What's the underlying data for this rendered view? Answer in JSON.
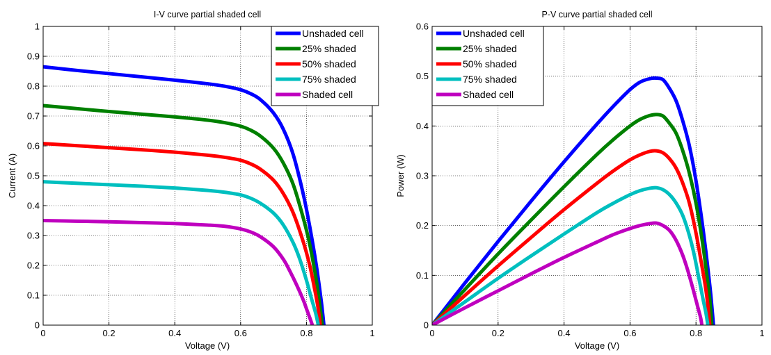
{
  "chart_data": [
    {
      "type": "line",
      "title": "I-V curve partial shaded cell",
      "xlabel": "Voltage (V)",
      "ylabel": "Current (A)",
      "xlim": [
        0,
        1
      ],
      "ylim": [
        0,
        1
      ],
      "xticks": [
        0,
        0.2,
        0.4,
        0.6,
        0.8,
        1
      ],
      "xtick_labels": [
        "0",
        "0.2",
        "0.4",
        "0.6",
        "0.8",
        "1"
      ],
      "yticks": [
        0,
        0.1,
        0.2,
        0.3,
        0.4,
        0.5,
        0.6,
        0.7,
        0.8,
        0.9,
        1
      ],
      "ytick_labels": [
        "0",
        "0.1",
        "0.2",
        "0.3",
        "0.4",
        "0.5",
        "0.6",
        "0.7",
        "0.8",
        "0.9",
        "1"
      ],
      "grid": true,
      "legend_position": "top-right",
      "series": [
        {
          "name": "Unshaded cell",
          "color": "#0000ff",
          "x": [
            0,
            0.1,
            0.2,
            0.3,
            0.4,
            0.5,
            0.55,
            0.6,
            0.63,
            0.66,
            0.7,
            0.73,
            0.76,
            0.79,
            0.81,
            0.83,
            0.845,
            0.853
          ],
          "y": [
            0.865,
            0.853,
            0.842,
            0.831,
            0.82,
            0.808,
            0.8,
            0.788,
            0.775,
            0.755,
            0.71,
            0.655,
            0.57,
            0.44,
            0.33,
            0.2,
            0.08,
            0
          ]
        },
        {
          "name": "25% shaded",
          "color": "#008000",
          "x": [
            0,
            0.1,
            0.2,
            0.3,
            0.4,
            0.5,
            0.55,
            0.6,
            0.63,
            0.66,
            0.7,
            0.73,
            0.76,
            0.79,
            0.81,
            0.83,
            0.84,
            0.848
          ],
          "y": [
            0.735,
            0.725,
            0.715,
            0.706,
            0.697,
            0.686,
            0.678,
            0.666,
            0.653,
            0.633,
            0.592,
            0.542,
            0.47,
            0.36,
            0.27,
            0.15,
            0.07,
            0
          ]
        },
        {
          "name": "50% shaded",
          "color": "#ff0000",
          "x": [
            0,
            0.1,
            0.2,
            0.3,
            0.4,
            0.5,
            0.55,
            0.6,
            0.63,
            0.66,
            0.7,
            0.73,
            0.76,
            0.79,
            0.81,
            0.825,
            0.835,
            0.842
          ],
          "y": [
            0.608,
            0.601,
            0.594,
            0.587,
            0.579,
            0.569,
            0.562,
            0.552,
            0.54,
            0.522,
            0.485,
            0.44,
            0.375,
            0.28,
            0.2,
            0.12,
            0.06,
            0
          ]
        },
        {
          "name": "75% shaded",
          "color": "#00bfbf",
          "x": [
            0,
            0.1,
            0.2,
            0.3,
            0.4,
            0.5,
            0.55,
            0.6,
            0.63,
            0.66,
            0.7,
            0.73,
            0.76,
            0.78,
            0.8,
            0.815,
            0.828,
            0.836
          ],
          "y": [
            0.48,
            0.475,
            0.47,
            0.465,
            0.459,
            0.451,
            0.445,
            0.436,
            0.425,
            0.408,
            0.375,
            0.335,
            0.275,
            0.22,
            0.15,
            0.09,
            0.04,
            0
          ]
        },
        {
          "name": "Shaded cell",
          "color": "#bf00bf",
          "x": [
            0,
            0.1,
            0.2,
            0.3,
            0.4,
            0.5,
            0.55,
            0.6,
            0.63,
            0.66,
            0.7,
            0.73,
            0.75,
            0.77,
            0.79,
            0.8,
            0.81,
            0.818
          ],
          "y": [
            0.35,
            0.348,
            0.346,
            0.343,
            0.34,
            0.335,
            0.331,
            0.322,
            0.312,
            0.296,
            0.262,
            0.22,
            0.18,
            0.135,
            0.085,
            0.055,
            0.025,
            0
          ]
        }
      ]
    },
    {
      "type": "line",
      "title": "P-V curve partial shaded cell",
      "xlabel": "Voltage (V)",
      "ylabel": "Power (W)",
      "xlim": [
        0,
        1
      ],
      "ylim": [
        0,
        0.6
      ],
      "xticks": [
        0,
        0.2,
        0.4,
        0.6,
        0.8,
        1
      ],
      "xtick_labels": [
        "0",
        "0.2",
        "0.4",
        "0.6",
        "0.8",
        "1"
      ],
      "yticks": [
        0,
        0.1,
        0.2,
        0.3,
        0.4,
        0.5,
        0.6
      ],
      "ytick_labels": [
        "0",
        "0.1",
        "0.2",
        "0.3",
        "0.4",
        "0.5",
        "0.6"
      ],
      "grid": true,
      "legend_position": "top-left",
      "series": [
        {
          "name": "Unshaded cell",
          "color": "#0000ff",
          "x": [
            0,
            0.1,
            0.2,
            0.3,
            0.4,
            0.5,
            0.55,
            0.6,
            0.63,
            0.66,
            0.68,
            0.7,
            0.72,
            0.74,
            0.76,
            0.78,
            0.8,
            0.82,
            0.835,
            0.845,
            0.853
          ],
          "y": [
            0,
            0.085,
            0.168,
            0.249,
            0.328,
            0.404,
            0.44,
            0.473,
            0.488,
            0.495,
            0.496,
            0.493,
            0.475,
            0.45,
            0.41,
            0.36,
            0.29,
            0.2,
            0.12,
            0.06,
            0
          ]
        },
        {
          "name": "25% shaded",
          "color": "#008000",
          "x": [
            0,
            0.1,
            0.2,
            0.3,
            0.4,
            0.5,
            0.55,
            0.6,
            0.63,
            0.66,
            0.68,
            0.7,
            0.72,
            0.74,
            0.76,
            0.78,
            0.8,
            0.82,
            0.835,
            0.842,
            0.848
          ],
          "y": [
            0,
            0.072,
            0.143,
            0.211,
            0.278,
            0.343,
            0.373,
            0.4,
            0.413,
            0.421,
            0.423,
            0.42,
            0.405,
            0.385,
            0.35,
            0.305,
            0.245,
            0.165,
            0.09,
            0.05,
            0
          ]
        },
        {
          "name": "50% shaded",
          "color": "#ff0000",
          "x": [
            0,
            0.1,
            0.2,
            0.3,
            0.4,
            0.5,
            0.55,
            0.6,
            0.63,
            0.66,
            0.68,
            0.7,
            0.72,
            0.74,
            0.76,
            0.78,
            0.8,
            0.815,
            0.828,
            0.836,
            0.842
          ],
          "y": [
            0,
            0.06,
            0.119,
            0.176,
            0.232,
            0.285,
            0.31,
            0.332,
            0.342,
            0.349,
            0.35,
            0.346,
            0.334,
            0.315,
            0.285,
            0.245,
            0.185,
            0.13,
            0.08,
            0.04,
            0
          ]
        },
        {
          "name": "75% shaded",
          "color": "#00bfbf",
          "x": [
            0,
            0.1,
            0.2,
            0.3,
            0.4,
            0.5,
            0.55,
            0.6,
            0.63,
            0.66,
            0.68,
            0.7,
            0.72,
            0.74,
            0.76,
            0.78,
            0.795,
            0.81,
            0.822,
            0.83,
            0.836
          ],
          "y": [
            0,
            0.047,
            0.094,
            0.139,
            0.183,
            0.226,
            0.245,
            0.262,
            0.27,
            0.275,
            0.276,
            0.272,
            0.262,
            0.245,
            0.22,
            0.18,
            0.14,
            0.09,
            0.05,
            0.025,
            0
          ]
        },
        {
          "name": "Shaded cell",
          "color": "#bf00bf",
          "x": [
            0,
            0.1,
            0.2,
            0.3,
            0.4,
            0.5,
            0.55,
            0.6,
            0.63,
            0.66,
            0.68,
            0.7,
            0.72,
            0.74,
            0.76,
            0.775,
            0.79,
            0.8,
            0.808,
            0.814,
            0.818
          ],
          "y": [
            0,
            0.035,
            0.069,
            0.103,
            0.136,
            0.167,
            0.182,
            0.194,
            0.2,
            0.204,
            0.205,
            0.2,
            0.19,
            0.17,
            0.14,
            0.11,
            0.075,
            0.05,
            0.03,
            0.015,
            0
          ]
        }
      ]
    }
  ]
}
